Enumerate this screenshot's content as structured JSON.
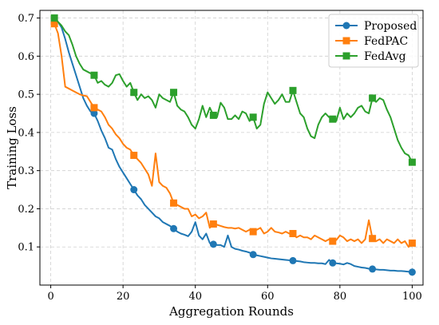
{
  "chart_data": {
    "type": "line",
    "xlabel": "Aggregation Rounds",
    "ylabel": "Training Loss",
    "xlim": [
      -3,
      103
    ],
    "ylim": [
      0.0,
      0.72
    ],
    "xticks": [
      0,
      20,
      40,
      60,
      80,
      100
    ],
    "yticks": [
      0.1,
      0.2,
      0.3,
      0.4,
      0.5,
      0.6,
      0.7
    ],
    "grid": true,
    "legend_position": "top-right",
    "series": [
      {
        "name": "Proposed",
        "color": "#1f77b4",
        "marker": "circle",
        "marker_rounds": [
          1,
          12,
          23,
          34,
          45,
          56,
          67,
          78,
          89,
          100
        ],
        "x": [
          1,
          2,
          3,
          4,
          5,
          6,
          7,
          8,
          9,
          10,
          11,
          12,
          13,
          14,
          15,
          16,
          17,
          18,
          19,
          20,
          21,
          22,
          23,
          24,
          25,
          26,
          27,
          28,
          29,
          30,
          31,
          32,
          33,
          34,
          35,
          36,
          37,
          38,
          39,
          40,
          41,
          42,
          43,
          44,
          45,
          46,
          47,
          48,
          49,
          50,
          51,
          52,
          53,
          54,
          55,
          56,
          57,
          58,
          59,
          60,
          61,
          62,
          63,
          64,
          65,
          66,
          67,
          68,
          69,
          70,
          71,
          72,
          73,
          74,
          75,
          76,
          77,
          78,
          79,
          80,
          81,
          82,
          83,
          84,
          85,
          86,
          87,
          88,
          89,
          90,
          91,
          92,
          93,
          94,
          95,
          96,
          97,
          98,
          99,
          100
        ],
        "y": [
          0.695,
          0.69,
          0.675,
          0.645,
          0.61,
          0.58,
          0.55,
          0.52,
          0.49,
          0.47,
          0.455,
          0.45,
          0.43,
          0.405,
          0.385,
          0.36,
          0.355,
          0.33,
          0.31,
          0.295,
          0.28,
          0.265,
          0.25,
          0.235,
          0.225,
          0.21,
          0.2,
          0.19,
          0.18,
          0.175,
          0.165,
          0.16,
          0.155,
          0.148,
          0.14,
          0.135,
          0.132,
          0.128,
          0.14,
          0.165,
          0.13,
          0.12,
          0.135,
          0.11,
          0.107,
          0.105,
          0.105,
          0.1,
          0.13,
          0.1,
          0.095,
          0.093,
          0.09,
          0.088,
          0.085,
          0.08,
          0.078,
          0.076,
          0.074,
          0.072,
          0.07,
          0.069,
          0.068,
          0.067,
          0.066,
          0.065,
          0.064,
          0.063,
          0.062,
          0.06,
          0.059,
          0.058,
          0.058,
          0.057,
          0.057,
          0.055,
          0.066,
          0.058,
          0.057,
          0.056,
          0.054,
          0.058,
          0.055,
          0.05,
          0.048,
          0.046,
          0.045,
          0.043,
          0.042,
          0.041,
          0.04,
          0.04,
          0.039,
          0.038,
          0.038,
          0.037,
          0.037,
          0.036,
          0.035,
          0.034
        ]
      },
      {
        "name": "FedPAC",
        "color": "#ff7f0e",
        "marker": "square",
        "marker_rounds": [
          1,
          12,
          23,
          34,
          45,
          56,
          67,
          78,
          89,
          100
        ],
        "x": [
          1,
          2,
          3,
          4,
          5,
          6,
          7,
          8,
          9,
          10,
          11,
          12,
          13,
          14,
          15,
          16,
          17,
          18,
          19,
          20,
          21,
          22,
          23,
          24,
          25,
          26,
          27,
          28,
          29,
          30,
          31,
          32,
          33,
          34,
          35,
          36,
          37,
          38,
          39,
          40,
          41,
          42,
          43,
          44,
          45,
          46,
          47,
          48,
          49,
          50,
          51,
          52,
          53,
          54,
          55,
          56,
          57,
          58,
          59,
          60,
          61,
          62,
          63,
          64,
          65,
          66,
          67,
          68,
          69,
          70,
          71,
          72,
          73,
          74,
          75,
          76,
          77,
          78,
          79,
          80,
          81,
          82,
          83,
          84,
          85,
          86,
          87,
          88,
          89,
          90,
          91,
          92,
          93,
          94,
          95,
          96,
          97,
          98,
          99,
          100
        ],
        "y": [
          0.685,
          0.66,
          0.6,
          0.52,
          0.515,
          0.51,
          0.505,
          0.5,
          0.497,
          0.495,
          0.48,
          0.465,
          0.46,
          0.455,
          0.44,
          0.42,
          0.41,
          0.395,
          0.385,
          0.37,
          0.36,
          0.355,
          0.34,
          0.33,
          0.32,
          0.305,
          0.29,
          0.26,
          0.345,
          0.27,
          0.26,
          0.255,
          0.24,
          0.215,
          0.21,
          0.205,
          0.2,
          0.2,
          0.18,
          0.185,
          0.175,
          0.18,
          0.19,
          0.15,
          0.16,
          0.158,
          0.155,
          0.152,
          0.15,
          0.15,
          0.148,
          0.15,
          0.145,
          0.14,
          0.145,
          0.14,
          0.145,
          0.15,
          0.135,
          0.14,
          0.15,
          0.14,
          0.138,
          0.135,
          0.14,
          0.135,
          0.135,
          0.125,
          0.13,
          0.125,
          0.125,
          0.12,
          0.13,
          0.125,
          0.12,
          0.115,
          0.12,
          0.115,
          0.118,
          0.13,
          0.125,
          0.115,
          0.12,
          0.115,
          0.12,
          0.11,
          0.12,
          0.17,
          0.122,
          0.115,
          0.12,
          0.11,
          0.12,
          0.115,
          0.11,
          0.12,
          0.11,
          0.115,
          0.1,
          0.11
        ]
      },
      {
        "name": "FedAvg",
        "color": "#2ca02c",
        "marker": "square",
        "marker_rounds": [
          1,
          12,
          23,
          34,
          45,
          56,
          67,
          78,
          89,
          100
        ],
        "x": [
          1,
          2,
          3,
          4,
          5,
          6,
          7,
          8,
          9,
          10,
          11,
          12,
          13,
          14,
          15,
          16,
          17,
          18,
          19,
          20,
          21,
          22,
          23,
          24,
          25,
          26,
          27,
          28,
          29,
          30,
          31,
          32,
          33,
          34,
          35,
          36,
          37,
          38,
          39,
          40,
          41,
          42,
          43,
          44,
          45,
          46,
          47,
          48,
          49,
          50,
          51,
          52,
          53,
          54,
          55,
          56,
          57,
          58,
          59,
          60,
          61,
          62,
          63,
          64,
          65,
          66,
          67,
          68,
          69,
          70,
          71,
          72,
          73,
          74,
          75,
          76,
          77,
          78,
          79,
          80,
          81,
          82,
          83,
          84,
          85,
          86,
          87,
          88,
          89,
          90,
          91,
          92,
          93,
          94,
          95,
          96,
          97,
          98,
          99,
          100
        ],
        "y": [
          0.7,
          0.69,
          0.68,
          0.665,
          0.655,
          0.63,
          0.6,
          0.58,
          0.565,
          0.56,
          0.555,
          0.55,
          0.53,
          0.535,
          0.525,
          0.52,
          0.53,
          0.55,
          0.553,
          0.535,
          0.52,
          0.53,
          0.505,
          0.485,
          0.5,
          0.49,
          0.495,
          0.485,
          0.465,
          0.5,
          0.49,
          0.485,
          0.48,
          0.505,
          0.47,
          0.46,
          0.455,
          0.44,
          0.42,
          0.41,
          0.435,
          0.47,
          0.44,
          0.465,
          0.445,
          0.44,
          0.478,
          0.465,
          0.435,
          0.435,
          0.445,
          0.435,
          0.455,
          0.45,
          0.43,
          0.44,
          0.41,
          0.42,
          0.475,
          0.505,
          0.49,
          0.475,
          0.485,
          0.5,
          0.48,
          0.48,
          0.51,
          0.48,
          0.45,
          0.44,
          0.41,
          0.39,
          0.385,
          0.42,
          0.44,
          0.45,
          0.44,
          0.435,
          0.43,
          0.465,
          0.435,
          0.45,
          0.44,
          0.45,
          0.465,
          0.47,
          0.455,
          0.45,
          0.49,
          0.48,
          0.49,
          0.485,
          0.46,
          0.44,
          0.41,
          0.38,
          0.36,
          0.345,
          0.34,
          0.322
        ]
      }
    ]
  }
}
